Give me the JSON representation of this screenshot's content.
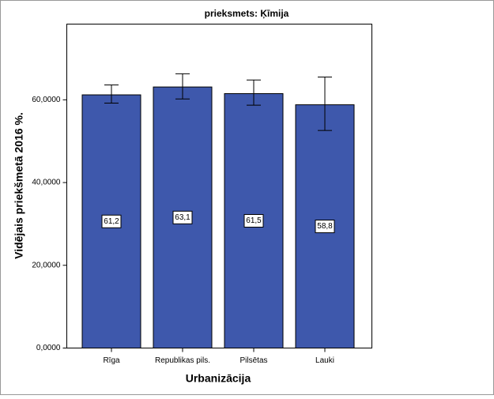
{
  "chart_data": {
    "type": "bar",
    "title": "prieksmets: Ķīmija",
    "x_label": "Urbanizācija",
    "y_label": "Vidējais priekšmetā 2016 %.",
    "categories": [
      "Rīga",
      "Republikas pils.",
      "Pilsētas",
      "Lauki"
    ],
    "values": [
      61.2,
      63.1,
      61.5,
      58.8
    ],
    "value_labels": [
      "61,2",
      "63,1",
      "61,5",
      "58,8"
    ],
    "ci_low": [
      59.2,
      60.2,
      58.7,
      52.6
    ],
    "ci_high": [
      63.6,
      66.3,
      64.8,
      65.5
    ],
    "color": "#3e58ac",
    "ylim": [
      0,
      78.3
    ],
    "yticks": [
      {
        "value": 0,
        "label": "0,0000"
      },
      {
        "value": 20,
        "label": "20,0000"
      },
      {
        "value": 40,
        "label": "40,0000"
      },
      {
        "value": 60,
        "label": "60,0000"
      }
    ]
  }
}
